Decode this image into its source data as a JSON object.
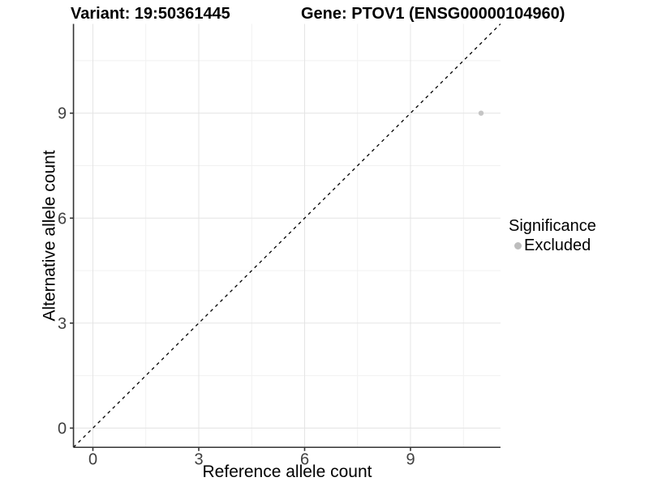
{
  "chart_data": {
    "type": "scatter",
    "title_left": "Variant: 19:50361445",
    "title_right": "Gene: PTOV1 (ENSG00000104960)",
    "xlabel": "Reference allele count",
    "ylabel": "Alternative allele count",
    "xlim": [
      0,
      11
    ],
    "ylim": [
      0,
      11
    ],
    "expansion": 0.55,
    "x_breaks": [
      0,
      3,
      6,
      9
    ],
    "y_breaks": [
      0,
      3,
      6,
      9
    ],
    "x_minor_breaks": [
      1.5,
      4.5,
      7.5,
      10.5
    ],
    "y_minor_breaks": [
      1.5,
      4.5,
      7.5,
      10.5
    ],
    "grid": true,
    "points": [
      {
        "x": 11,
        "y": 9,
        "significance": "Excluded",
        "color": "#c5c5c5"
      }
    ],
    "identity_line": {
      "style": "dashed",
      "slope": 1,
      "intercept": 0,
      "color": "#000000"
    },
    "legend": {
      "title": "Significance",
      "position": "right",
      "items": [
        {
          "label": "Excluded",
          "color": "#bdbdbd"
        }
      ]
    },
    "colors": {
      "grid_major": "#e4e4e4",
      "grid_minor": "#f1f1f1",
      "axis": "#333333",
      "tick_text": "#404040",
      "background": "#ffffff"
    }
  }
}
